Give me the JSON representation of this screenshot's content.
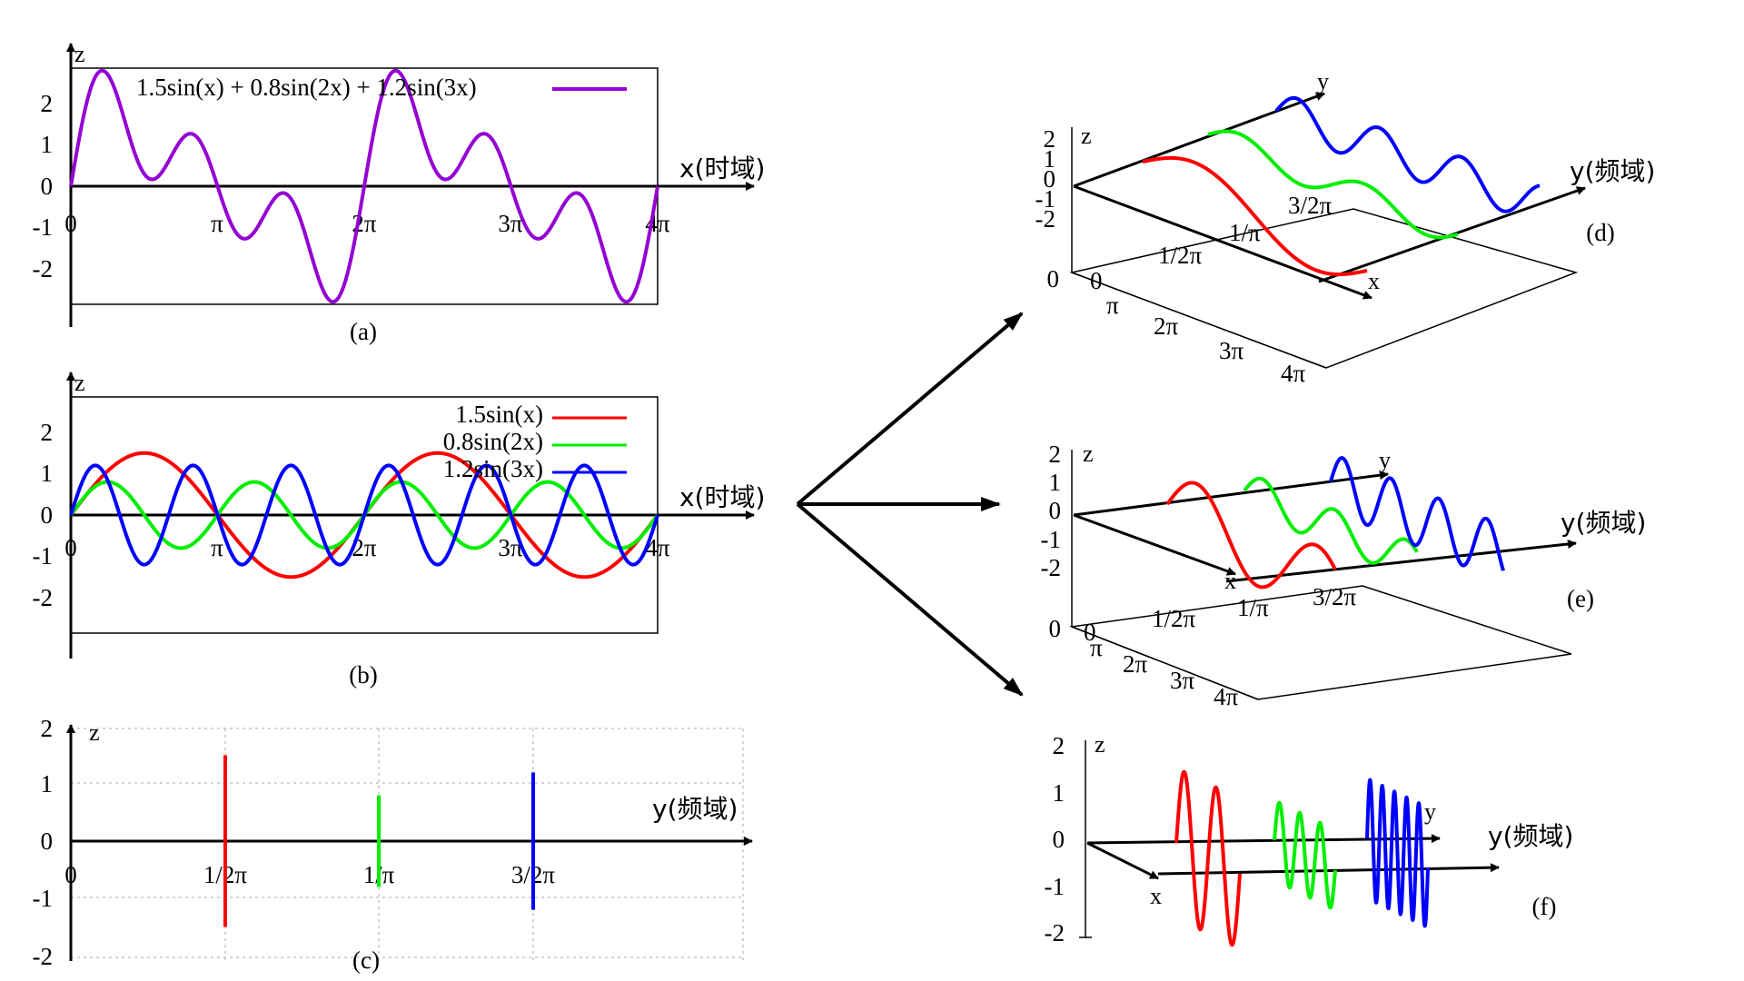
{
  "colors": {
    "composite": "#9400d3",
    "s1": "#ff0000",
    "s2": "#00ee00",
    "s3": "#0000ff",
    "axis": "#000000"
  },
  "panel_a": {
    "caption": "(a)",
    "z_label": "z",
    "x_label": "x(时域)",
    "y_ticks": [
      "2",
      "1",
      "0",
      "-1",
      "-2"
    ],
    "x_ticks": [
      "0",
      "π",
      "2π",
      "3π",
      "4π"
    ],
    "legend": "1.5sin(x) + 0.8sin(2x) + 1.2sin(3x)"
  },
  "panel_b": {
    "caption": "(b)",
    "z_label": "z",
    "x_label": "x(时域)",
    "y_ticks": [
      "2",
      "1",
      "0",
      "-1",
      "-2"
    ],
    "x_ticks": [
      "0",
      "π",
      "2π",
      "3π",
      "4π"
    ],
    "legend": [
      "1.5sin(x)",
      "0.8sin(2x)",
      "1.2sin(3x)"
    ]
  },
  "panel_c": {
    "caption": "(c)",
    "z_label": "z",
    "x_label": "y(频域)",
    "y_ticks": [
      "2",
      "1",
      "0",
      "-1",
      "-2"
    ],
    "x_ticks": [
      "0",
      "1/2π",
      "1/π",
      "3/2π"
    ]
  },
  "panel_d": {
    "caption": "(d)",
    "z_label": "z",
    "y_label": "y",
    "freq_label": "y(频域)",
    "x_label": "x",
    "z_ticks": [
      "2",
      "1",
      "0",
      "-1",
      "-2"
    ],
    "floor_zero": "0",
    "floor_x_ticks": [
      "0",
      "π",
      "2π",
      "3π",
      "4π"
    ],
    "floor_y_ticks": [
      "1/2π",
      "1/π",
      "3/2π"
    ]
  },
  "panel_e": {
    "caption": "(e)",
    "z_label": "z",
    "y_label": "y",
    "freq_label": "y(频域)",
    "x_label": "x",
    "z_ticks": [
      "2",
      "1",
      "0",
      "-1",
      "-2"
    ],
    "floor_zero": "0",
    "floor_x_ticks": [
      "0",
      "π",
      "2π",
      "3π",
      "4π"
    ],
    "floor_y_ticks": [
      "1/2π",
      "1/π",
      "3/2π"
    ]
  },
  "panel_f": {
    "caption": "(f)",
    "z_label": "z",
    "y_label": "y",
    "freq_label": "y(频域)",
    "x_label": "x",
    "z_ticks": [
      "2",
      "1",
      "0",
      "-1",
      "-2"
    ]
  },
  "chart_data": [
    {
      "type": "line",
      "x_range": [
        0,
        12.566
      ],
      "ylim": [
        -2.9,
        2.9
      ],
      "series": [
        {
          "name": "1.5sin(x) + 0.8sin(2x) + 1.2sin(3x)",
          "amplitudes": [
            1.5,
            0.8,
            1.2
          ],
          "frequencies": [
            1,
            2,
            3
          ]
        }
      ]
    },
    {
      "type": "line",
      "x_range": [
        0,
        12.566
      ],
      "ylim": [
        -2.9,
        2.9
      ],
      "series": [
        {
          "name": "1.5sin(x)",
          "amplitude": 1.5,
          "frequency": 1
        },
        {
          "name": "0.8sin(2x)",
          "amplitude": 0.8,
          "frequency": 2
        },
        {
          "name": "1.2sin(3x)",
          "amplitude": 1.2,
          "frequency": 3
        }
      ]
    },
    {
      "type": "bar",
      "categories": [
        "1/2π",
        "1/π",
        "3/2π"
      ],
      "values": [
        1.5,
        0.8,
        1.2
      ],
      "ylim": [
        -2,
        2
      ]
    }
  ]
}
